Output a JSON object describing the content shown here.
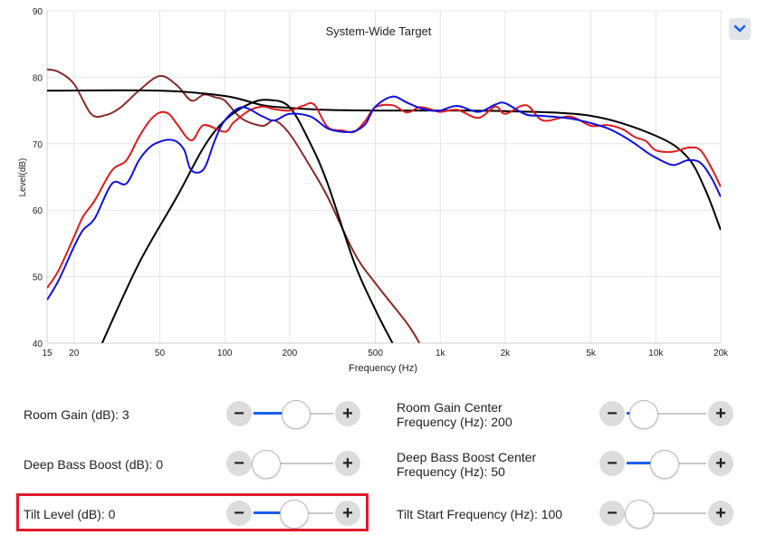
{
  "chart_data": {
    "type": "line",
    "title": "System-Wide Target",
    "xlabel": "Frequency (Hz)",
    "ylabel": "Level(dB)",
    "x_scale": "log",
    "xlim": [
      15,
      20000
    ],
    "ylim": [
      40,
      90
    ],
    "x_ticks": [
      15,
      20,
      50,
      100,
      200,
      500,
      1000,
      2000,
      5000,
      10000,
      20000
    ],
    "x_tick_labels": [
      "15",
      "20",
      "50",
      "100",
      "200",
      "500",
      "1k",
      "2k",
      "5k",
      "10k",
      "20k"
    ],
    "y_ticks": [
      40,
      50,
      60,
      70,
      80,
      90
    ],
    "y_tick_labels": [
      "40",
      "50",
      "60",
      "70",
      "80",
      "90"
    ],
    "grid": true,
    "series": [
      {
        "color": "#8b2a2a",
        "x": [
          15,
          17,
          20,
          24,
          28,
          33,
          40,
          50,
          60,
          70,
          80,
          90,
          100,
          120,
          150,
          170,
          200,
          250,
          300,
          400,
          500,
          700,
          800
        ],
        "y": [
          81.2,
          80.8,
          79,
          74.5,
          74.3,
          75.5,
          78,
          80.2,
          78.8,
          76.5,
          77.4,
          77,
          76.5,
          73.8,
          72.7,
          73.5,
          71.5,
          66.5,
          62,
          53.5,
          49,
          43,
          40
        ]
      },
      {
        "color": "#000000",
        "x": [
          15,
          50,
          100,
          150,
          200,
          300,
          500,
          800,
          1000,
          2000,
          5000,
          10000,
          14000,
          17000,
          20000
        ],
        "y": [
          78,
          78,
          77.2,
          75.8,
          75.4,
          75.1,
          75,
          75,
          75,
          74.9,
          74.2,
          71.2,
          68,
          63,
          57
        ]
      },
      {
        "color": "#000000",
        "x": [
          27,
          40,
          60,
          80,
          100,
          130,
          160,
          200,
          250,
          300,
          400,
          500,
          600
        ],
        "y": [
          40,
          52,
          62,
          69.5,
          73.5,
          76,
          76.6,
          75.5,
          70,
          64,
          52,
          45,
          40
        ]
      },
      {
        "color": "#e01a1a",
        "x": [
          15,
          17,
          20,
          22,
          25,
          30,
          35,
          40,
          45,
          50,
          55,
          60,
          70,
          80,
          100,
          110,
          130,
          150,
          170,
          200,
          230,
          260,
          300,
          350,
          400,
          450,
          500,
          600,
          700,
          800,
          900,
          1000,
          1200,
          1500,
          1800,
          2000,
          2500,
          3000,
          4000,
          5000,
          6000,
          7000,
          8000,
          9000,
          10000,
          12000,
          14000,
          16000,
          18000,
          20000
        ],
        "y": [
          48.3,
          51,
          56,
          59,
          61.5,
          66,
          67.5,
          71,
          73.5,
          74.7,
          74.5,
          73,
          70.5,
          72.8,
          71.8,
          73.2,
          75,
          75.6,
          75.2,
          75,
          75.7,
          75.9,
          72.5,
          72,
          71.8,
          73.5,
          75.5,
          75.8,
          74.7,
          75.5,
          75.2,
          74.8,
          75.1,
          73.9,
          75.6,
          74.5,
          75.8,
          73.5,
          74.1,
          72.7,
          72.8,
          72.2,
          71,
          70.4,
          69,
          68.8,
          69.4,
          69.1,
          66.5,
          63.5
        ]
      },
      {
        "color": "#1010e0",
        "x": [
          15,
          17,
          20,
          22,
          25,
          30,
          35,
          40,
          45,
          50,
          55,
          60,
          65,
          70,
          80,
          90,
          100,
          120,
          150,
          170,
          200,
          250,
          300,
          350,
          400,
          450,
          500,
          600,
          700,
          800,
          900,
          1000,
          1200,
          1500,
          1800,
          2000,
          2500,
          3000,
          4000,
          5000,
          6000,
          7000,
          8000,
          9000,
          10000,
          12000,
          14000,
          16000,
          18000,
          20000
        ],
        "y": [
          46.5,
          49.5,
          54.5,
          57,
          58.8,
          64,
          64,
          67.5,
          69.5,
          70.3,
          70.6,
          70.3,
          69,
          66,
          66.2,
          70.5,
          73.5,
          75.5,
          74.1,
          73.5,
          74.5,
          74.1,
          72.3,
          71.8,
          71.9,
          73,
          75.6,
          77.1,
          76.2,
          75.4,
          75,
          75,
          75.7,
          74.8,
          75.9,
          76.1,
          74.4,
          74.2,
          73.8,
          73.1,
          72.3,
          71.2,
          70,
          68.8,
          67.9,
          66.8,
          67.5,
          67.2,
          65,
          62
        ]
      }
    ]
  },
  "header": {
    "dropdown_icon": "chevron-down-icon"
  },
  "controls": [
    {
      "label": "Room Gain (dB): 3",
      "value": 3,
      "fill_fraction": 0.53
    },
    {
      "label": "Room Gain Center Frequency (Hz): 200",
      "value": 200,
      "fill_fraction": 0.08
    },
    {
      "label": "Deep Bass Boost (dB): 0",
      "value": 0,
      "fill_fraction": 0.0
    },
    {
      "label": "Deep Bass Boost Center Frequency (Hz): 50",
      "value": 50,
      "fill_fraction": 0.45
    },
    {
      "label": "Tilt Level (dB): 0",
      "value": 0,
      "fill_fraction": 0.5
    },
    {
      "label": "Tilt Start Frequency (Hz): 100",
      "value": 100,
      "fill_fraction": 0.0
    }
  ],
  "buttons": {
    "minus": "−",
    "plus": "+"
  },
  "colors": {
    "accent": "#1a5ff0",
    "highlight": "#e01a2a"
  }
}
